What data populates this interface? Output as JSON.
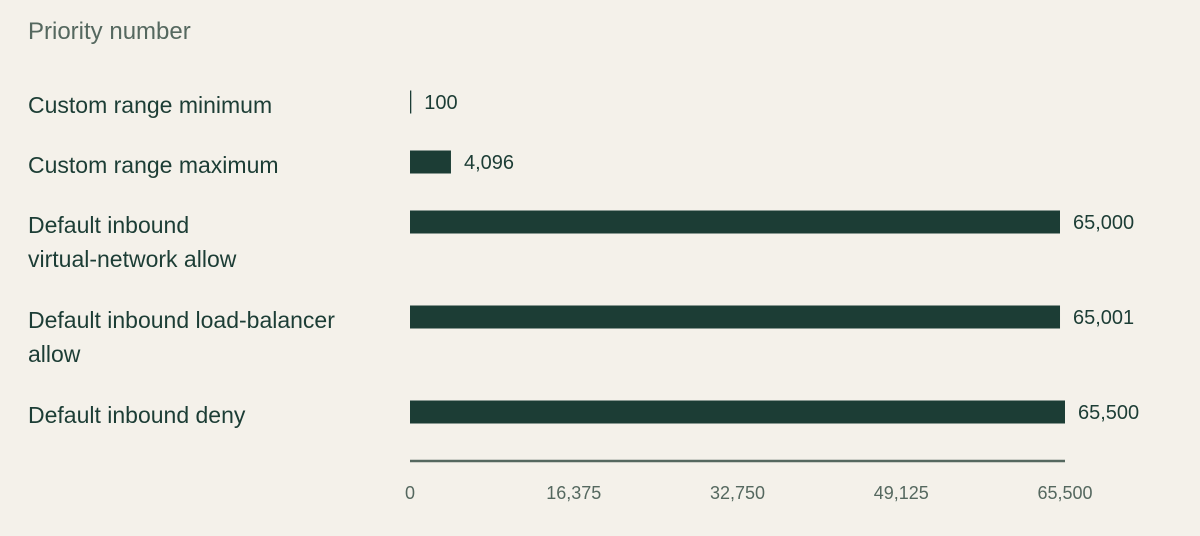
{
  "chart_data": {
    "type": "bar",
    "orientation": "horizontal",
    "xlabel": "Priority number",
    "categories": [
      [
        "Custom range minimum"
      ],
      [
        "Custom range maximum"
      ],
      [
        "Default inbound",
        "virtual-network allow"
      ],
      [
        "Default inbound load-balancer",
        "allow"
      ],
      [
        "Default inbound deny"
      ]
    ],
    "values": [
      100,
      4096,
      65000,
      65001,
      65500
    ],
    "value_labels": [
      "100",
      "4,096",
      "65,000",
      "65,001",
      "65,500"
    ],
    "xlim": [
      0,
      65500
    ],
    "ticks": [
      0,
      16375,
      32750,
      49125,
      65500
    ],
    "tick_labels": [
      "0",
      "16,375",
      "32,750",
      "49,125",
      "65,500"
    ],
    "grid": false,
    "colors": {
      "bar": "#1c3d35",
      "label": "#1c3d35",
      "axis": "#55685f",
      "background": "#f4f1ea"
    }
  }
}
